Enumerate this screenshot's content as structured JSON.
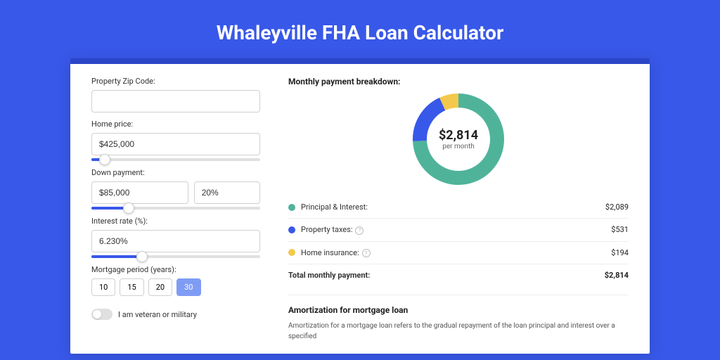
{
  "page": {
    "title": "Whaleyville FHA Loan Calculator",
    "background_color": "#3858e9",
    "card_accent": "#2b46c7"
  },
  "form": {
    "zip": {
      "label": "Property Zip Code:",
      "value": ""
    },
    "home_price": {
      "label": "Home price:",
      "value": "$425,000",
      "slider_pct": 8
    },
    "down_payment": {
      "label": "Down payment:",
      "amount": "$85,000",
      "percent": "20%",
      "slider_pct": 22
    },
    "interest": {
      "label": "Interest rate (%):",
      "value": "6.230%",
      "slider_pct": 30
    },
    "period": {
      "label": "Mortgage period (years):",
      "options": [
        "10",
        "15",
        "20",
        "30"
      ],
      "selected": "30"
    },
    "veteran": {
      "label": "I am veteran or military",
      "checked": false
    }
  },
  "breakdown": {
    "title": "Monthly payment breakdown:",
    "donut": {
      "value": "$2,814",
      "sub": "per month",
      "slices": [
        {
          "key": "pi",
          "label": "Principal & Interest:",
          "amount": "$2,089",
          "color": "#4fb39a",
          "pct": 74.2
        },
        {
          "key": "tax",
          "label": "Property taxes:",
          "amount": "$531",
          "color": "#3858e9",
          "pct": 18.9,
          "info": true
        },
        {
          "key": "ins",
          "label": "Home insurance:",
          "amount": "$194",
          "color": "#f2c94c",
          "pct": 6.9,
          "info": true
        }
      ],
      "stroke_width": 20
    },
    "total": {
      "label": "Total monthly payment:",
      "amount": "$2,814"
    }
  },
  "amortization": {
    "title": "Amortization for mortgage loan",
    "text": "Amortization for a mortgage loan refers to the gradual repayment of the loan principal and interest over a specified"
  }
}
